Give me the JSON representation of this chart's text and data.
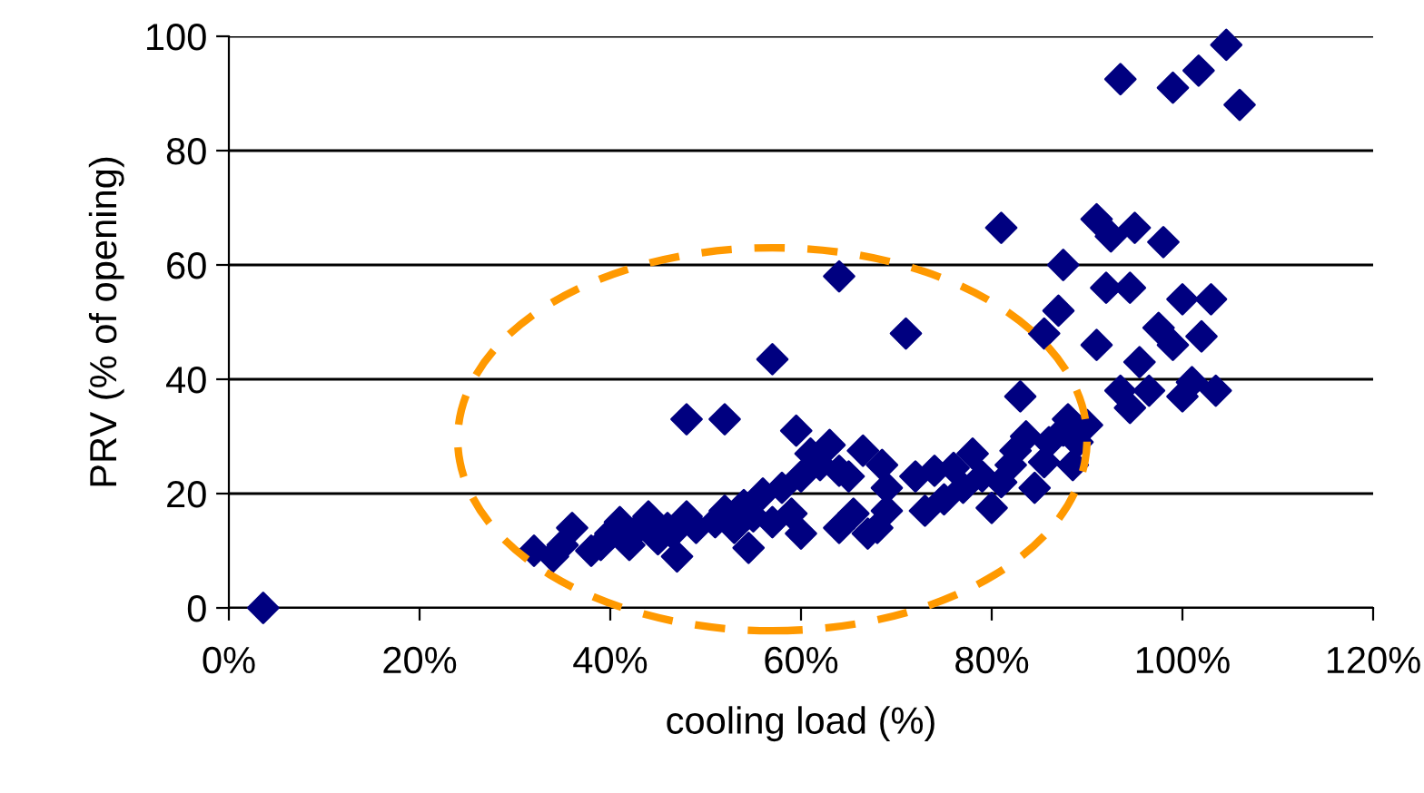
{
  "chart_data": {
    "type": "scatter",
    "xlabel": "cooling load (%)",
    "ylabel": "PRV (% of opening)",
    "xlim": [
      0,
      120
    ],
    "ylim": [
      0,
      100
    ],
    "xticks": [
      {
        "value": 0,
        "label": "0%"
      },
      {
        "value": 20,
        "label": "20%"
      },
      {
        "value": 40,
        "label": "40%"
      },
      {
        "value": 60,
        "label": "60%"
      },
      {
        "value": 80,
        "label": "80%"
      },
      {
        "value": 100,
        "label": "100%"
      },
      {
        "value": 120,
        "label": "120%"
      }
    ],
    "yticks": [
      0,
      20,
      40,
      60,
      80,
      100
    ],
    "grid": "y",
    "marker": "diamond",
    "legend": false,
    "series": [
      {
        "color": "#000080",
        "x": [
          3.6,
          32,
          34,
          35,
          36,
          38,
          39,
          40,
          41,
          42,
          43,
          44,
          45,
          46,
          46.5,
          48,
          47,
          48,
          49,
          51,
          52,
          52,
          53,
          54,
          55,
          56,
          54.5,
          57,
          58,
          57,
          59,
          60,
          59.5,
          61,
          62,
          63,
          64,
          60,
          64,
          65,
          66.5,
          68.5,
          65.5,
          67,
          68,
          64,
          69,
          69,
          73,
          71,
          72,
          74,
          75,
          76,
          77,
          78,
          79,
          80,
          81,
          82,
          82.5,
          83.6,
          81,
          84.5,
          85.5,
          86,
          87.5,
          88,
          83,
          85.5,
          87,
          87.5,
          88.5,
          89,
          90,
          91,
          92,
          91,
          92.5,
          93.5,
          95,
          93.5,
          94.5,
          95.5,
          96.5,
          97.5,
          99,
          100,
          100,
          101,
          102,
          103,
          103.5,
          99,
          101.7,
          104.6,
          106,
          94.5,
          98
        ],
        "values": [
          0,
          10,
          9,
          11,
          14,
          10,
          11,
          13,
          15,
          11,
          14,
          16,
          12,
          14,
          13,
          16,
          9,
          33,
          14,
          15,
          33,
          17,
          14,
          18,
          16,
          20,
          10.5,
          15,
          21,
          43.5,
          16.5,
          23,
          31,
          27,
          25,
          28.5,
          24,
          13,
          14,
          23,
          27.5,
          25,
          16.5,
          13,
          14,
          58,
          21,
          17,
          17,
          48,
          23,
          24,
          19,
          24.5,
          21,
          27,
          23,
          17.5,
          22,
          25,
          27.5,
          30,
          66.5,
          21,
          25.5,
          29,
          31,
          33,
          37,
          48,
          52,
          60,
          25,
          29,
          32,
          46,
          56,
          68,
          65,
          92.5,
          66.5,
          38,
          35,
          43,
          38,
          49,
          46,
          54,
          37,
          39.5,
          47.5,
          54,
          38,
          91,
          94,
          98.5,
          88,
          56,
          64
        ]
      }
    ]
  }
}
